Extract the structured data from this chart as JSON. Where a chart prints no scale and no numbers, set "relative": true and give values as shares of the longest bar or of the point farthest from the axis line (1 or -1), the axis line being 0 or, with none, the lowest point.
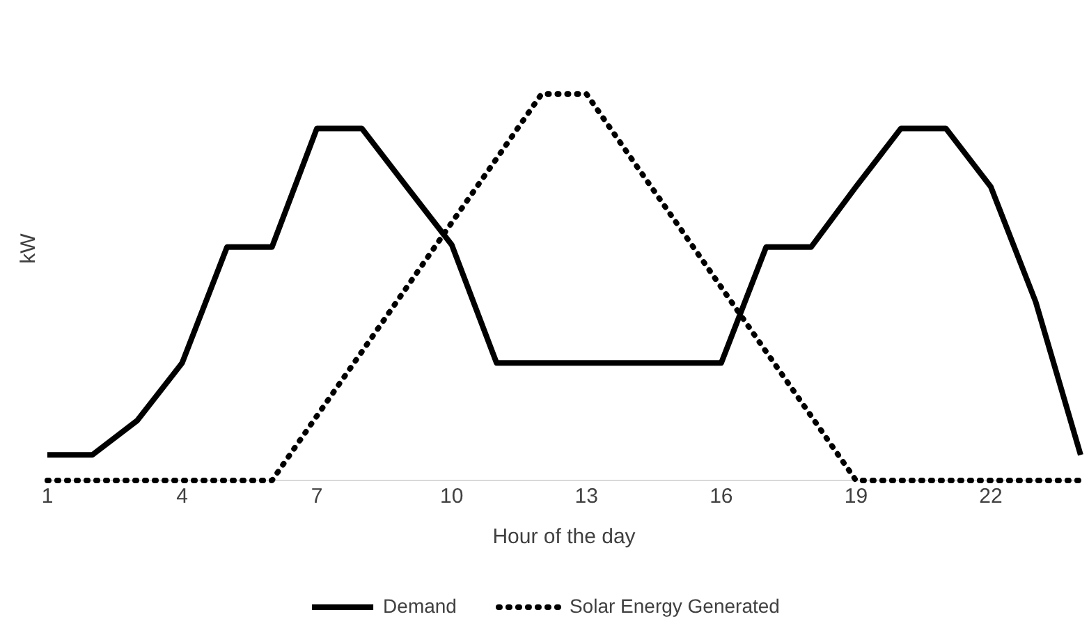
{
  "chart_data": {
    "type": "line",
    "relative": true,
    "xlabel": "Hour of the day",
    "ylabel": "kW",
    "categories": [
      "1",
      null,
      null,
      "4",
      null,
      null,
      "7",
      null,
      null,
      "10",
      null,
      null,
      "13",
      null,
      null,
      "16",
      null,
      null,
      "19",
      null,
      null,
      "22",
      null,
      null
    ],
    "series": [
      {
        "name": "Demand",
        "color": "#000000",
        "line_style": "solid",
        "values": [
          0.066,
          0.066,
          0.155,
          0.304,
          0.604,
          0.604,
          0.911,
          0.911,
          0.76,
          0.61,
          0.304,
          0.304,
          0.304,
          0.304,
          0.304,
          0.304,
          0.604,
          0.604,
          0.76,
          0.911,
          0.911,
          0.76,
          0.462,
          0.066
        ]
      },
      {
        "name": "Solar Energy Generated",
        "color": "#000000",
        "line_style": "dotted",
        "values": [
          0,
          0,
          0,
          0,
          0,
          0,
          0.167,
          0.333,
          0.5,
          0.667,
          0.833,
          1,
          1,
          0.833,
          0.667,
          0.5,
          0.333,
          0.167,
          0,
          0,
          0,
          0,
          0,
          0
        ]
      }
    ],
    "legend": "bottom",
    "grid": false,
    "marker": "none"
  }
}
